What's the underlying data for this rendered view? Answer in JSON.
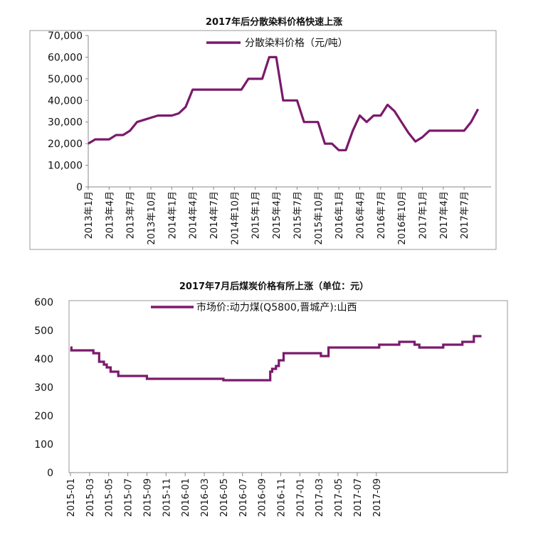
{
  "chart_data": [
    {
      "type": "line",
      "title": "2017年后分散染料价格快速上涨",
      "ylim": [
        0,
        70000
      ],
      "yticks": [
        "0",
        "10,000",
        "20,000",
        "30,000",
        "40,000",
        "50,000",
        "60,000",
        "70,000"
      ],
      "xtick_labels": [
        "2013年1月",
        "2013年4月",
        "2013年7月",
        "2013年10月",
        "2014年1月",
        "2014年4月",
        "2014年7月",
        "2014年10月",
        "2015年1月",
        "2015年4月",
        "2015年7月",
        "2015年10月",
        "2016年1月",
        "2016年4月",
        "2016年7月",
        "2016年10月",
        "2017年1月",
        "2017年4月",
        "2017年7月"
      ],
      "legend": "top-center",
      "color": "#7a1a6b",
      "series": [
        {
          "name": "分散染料价格（元/吨）",
          "x": [
            "2013-01",
            "2013-02",
            "2013-03",
            "2013-04",
            "2013-05",
            "2013-06",
            "2013-07",
            "2013-08",
            "2013-09",
            "2013-10",
            "2013-11",
            "2013-12",
            "2014-01",
            "2014-02",
            "2014-03",
            "2014-04",
            "2014-05",
            "2014-06",
            "2014-07",
            "2014-08",
            "2014-09",
            "2014-10",
            "2014-11",
            "2014-12",
            "2015-01",
            "2015-02",
            "2015-03",
            "2015-04",
            "2015-05",
            "2015-06",
            "2015-07",
            "2015-08",
            "2015-09",
            "2015-10",
            "2015-11",
            "2015-12",
            "2016-01",
            "2016-02",
            "2016-03",
            "2016-04",
            "2016-05",
            "2016-06",
            "2016-07",
            "2016-08",
            "2016-09",
            "2016-10",
            "2016-11",
            "2016-12",
            "2017-01",
            "2017-02",
            "2017-03",
            "2017-04",
            "2017-05",
            "2017-06",
            "2017-07",
            "2017-08",
            "2017-09"
          ],
          "values": [
            20000,
            22000,
            22000,
            22000,
            24000,
            24000,
            26000,
            30000,
            31000,
            32000,
            33000,
            33000,
            33000,
            34000,
            37000,
            45000,
            45000,
            45000,
            45000,
            45000,
            45000,
            45000,
            45000,
            50000,
            50000,
            50000,
            60000,
            60000,
            40000,
            40000,
            40000,
            30000,
            30000,
            30000,
            20000,
            20000,
            17000,
            17000,
            26000,
            33000,
            30000,
            33000,
            33000,
            38000,
            35000,
            30000,
            25000,
            21000,
            23000,
            26000,
            26000,
            26000,
            26000,
            26000,
            26000,
            30000,
            36000
          ]
        }
      ]
    },
    {
      "type": "line",
      "title": "2017年7月后煤炭价格有所上涨（单位：元）",
      "ylim": [
        0,
        600
      ],
      "yticks": [
        "0",
        "100",
        "200",
        "300",
        "400",
        "500",
        "600"
      ],
      "xtick_labels": [
        "2015-01",
        "2015-03",
        "2015-05",
        "2015-07",
        "2015-09",
        "2015-11",
        "2016-01",
        "2016-03",
        "2016-05",
        "2016-07",
        "2016-09",
        "2016-11",
        "2017-01",
        "2017-03",
        "2017-05",
        "2017-07",
        "2017-09"
      ],
      "legend": "top-center",
      "color": "#7a1a6b",
      "series": [
        {
          "name": "市场价:动力煤(Q5800,晋城产):山西",
          "x": [
            0.0,
            0.1,
            0.6,
            1.0,
            1.5,
            2.4,
            2.7,
            3.0,
            3.3,
            3.5,
            3.8,
            4.2,
            5.0,
            5.3,
            6.0,
            8.0,
            9.5,
            12.0,
            16.0,
            17.0,
            19.0,
            20.0,
            20.2,
            20.6,
            20.9,
            21.1,
            21.5,
            21.8,
            22.3,
            23.0,
            23.5,
            25.0,
            26.0,
            26.2,
            27.0,
            32.0,
            32.3,
            34.0,
            34.4,
            35.0,
            36.0,
            36.5,
            37.5,
            38.5,
            39.0,
            40.5,
            41.0,
            42.0,
            42.2,
            43.0
          ],
          "values": [
            440,
            430,
            430,
            430,
            430,
            420,
            420,
            390,
            390,
            380,
            370,
            355,
            340,
            340,
            340,
            330,
            330,
            330,
            325,
            325,
            325,
            325,
            325,
            325,
            355,
            365,
            375,
            395,
            420,
            420,
            420,
            420,
            420,
            410,
            440,
            440,
            450,
            450,
            460,
            460,
            450,
            440,
            440,
            440,
            450,
            450,
            460,
            460,
            480,
            480
          ]
        }
      ]
    }
  ]
}
